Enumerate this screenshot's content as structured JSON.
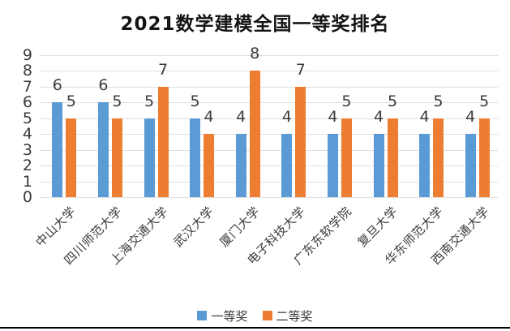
{
  "chart_data": {
    "type": "bar",
    "title": "2021数学建模全国一等奖排名",
    "categories": [
      "中山大学",
      "四川师范大学",
      "上海交通大学",
      "武汉大学",
      "厦门大学",
      "电子科技大学",
      "广东东软学院",
      "复旦大学",
      "华东师范大学",
      "西南交通大学"
    ],
    "series": [
      {
        "name": "一等奖",
        "color": "#5B9BD5",
        "values": [
          6,
          6,
          5,
          5,
          4,
          4,
          4,
          4,
          4,
          4
        ]
      },
      {
        "name": "二等奖",
        "color": "#ED7D31",
        "values": [
          5,
          5,
          7,
          4,
          8,
          7,
          5,
          5,
          5,
          5
        ]
      }
    ],
    "xlabel": "",
    "ylabel": "",
    "ylim": [
      0,
      9
    ],
    "yticks": [
      0,
      1,
      2,
      3,
      4,
      5,
      6,
      7,
      8,
      9
    ],
    "grid": true,
    "data_labels": true,
    "legend_position": "bottom",
    "category_label_rotation_deg": 45
  },
  "colors": {
    "first_prize": "#5B9BD5",
    "second_prize": "#ED7D31",
    "gridline": "#e0e0e0",
    "text": "#3b3b3b",
    "title": "#141414",
    "bottom_border": "#000000",
    "background": "#ffffff"
  }
}
